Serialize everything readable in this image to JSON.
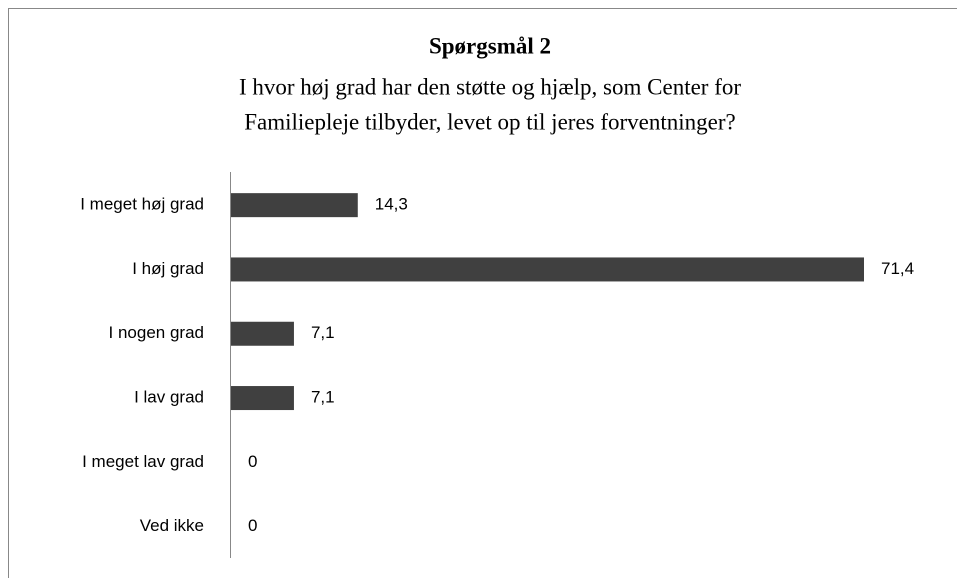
{
  "chart_data": {
    "type": "bar",
    "orientation": "horizontal",
    "title": "Spørgsmål 2",
    "subtitle": [
      "I hvor høj grad har den støtte og hjælp, som Center for",
      "Familiepleje tilbyder, levet op til jeres forventninger?"
    ],
    "categories": [
      "I meget høj grad",
      "I høj grad",
      "I nogen grad",
      "I lav grad",
      "I meget lav grad",
      "Ved ikke"
    ],
    "values": [
      14.3,
      71.4,
      7.1,
      7.1,
      0,
      0
    ],
    "value_labels": [
      "14,3",
      "71,4",
      "7,1",
      "7,1",
      "0",
      "0"
    ],
    "color": "#404040"
  }
}
